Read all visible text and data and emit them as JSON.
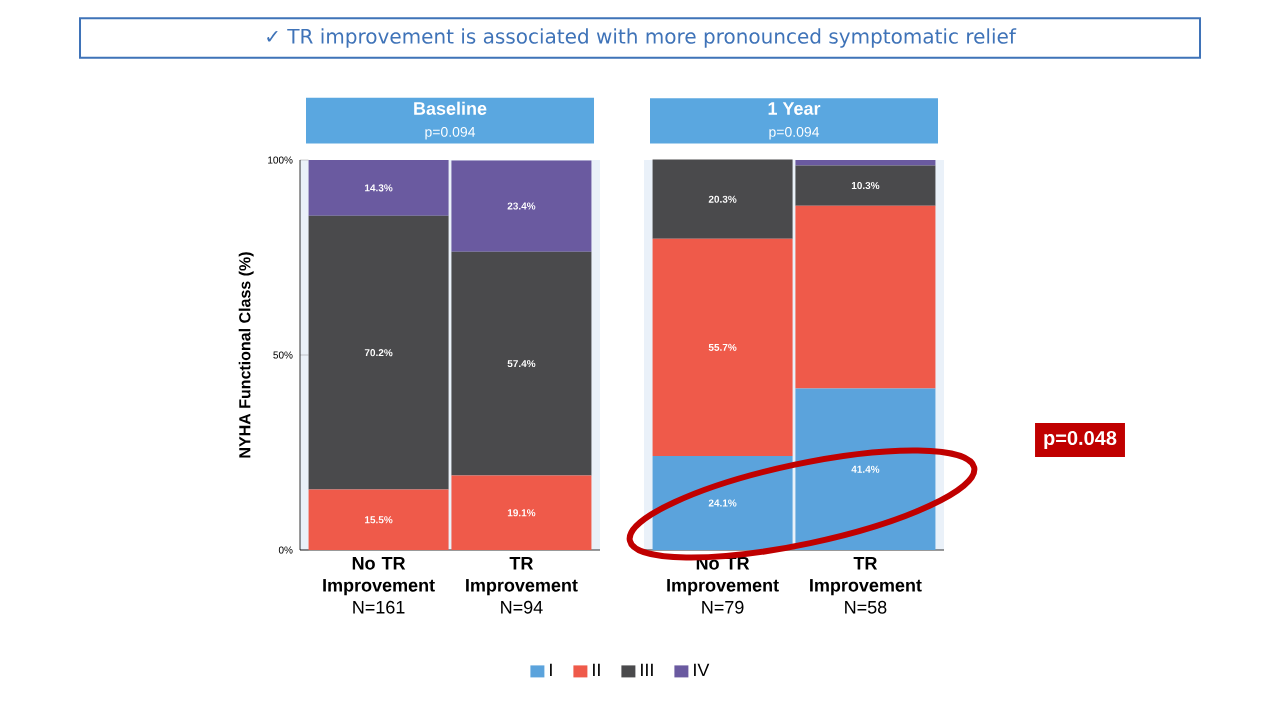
{
  "chart_data": [
    {
      "type": "bar",
      "stacked": true,
      "title": "Baseline",
      "subtitle": "p=0.094",
      "ylabel": "NYHA Functional Class (%)",
      "categories": [
        "**No TR Improvement** N=161",
        "**TR Improvement** N=94"
      ],
      "ylim": [
        0,
        100
      ],
      "yticks": [
        {
          "value": 0,
          "label": "0%"
        },
        {
          "value": 50,
          "label": "50%"
        },
        {
          "value": 100,
          "label": "100%"
        }
      ],
      "legend": "bottom",
      "annotations": [
        "✓ TR improvement is associated with more pronounced symptomatic relief"
      ],
      "series": [
        {
          "name": "I",
          "color": "#5ba3dc",
          "values": [
            0,
            0
          ],
          "value_labels": [
            null,
            null
          ]
        },
        {
          "name": "II",
          "color": "#ef5a4a",
          "values": [
            15.5,
            19.1
          ],
          "value_labels": [
            "15.5%",
            "19.1%"
          ]
        },
        {
          "name": "III",
          "color": "#4a4a4c",
          "values": [
            70.2,
            57.4
          ],
          "value_labels": [
            "70.2%",
            "57.4%"
          ]
        },
        {
          "name": "IV",
          "color": "#6a5aa0",
          "values": [
            14.3,
            23.4
          ],
          "value_labels": [
            "14.3%",
            "23.4%"
          ]
        }
      ]
    },
    {
      "type": "bar",
      "stacked": true,
      "title": "1 Year",
      "subtitle": "p=0.094",
      "categories": [
        "**No TR Improvement** N=79",
        "**TR Improvement** N=58"
      ],
      "ylim": [
        0,
        100
      ],
      "tick_labels": "x",
      "annotations": [
        "p=0.048"
      ],
      "series": [
        {
          "color": "#5ba3dc",
          "values": [
            24.1,
            41.4
          ],
          "value_labels": [
            "24.1%",
            "41.4%"
          ]
        },
        {
          "color": "#ef5a4a",
          "values": [
            55.7,
            46.9
          ],
          "value_labels": [
            "55.7%",
            null
          ]
        },
        {
          "color": "#4a4a4c",
          "values": [
            20.3,
            10.3
          ],
          "value_labels": [
            "20.3%",
            "10.3%"
          ]
        },
        {
          "color": "#6a5aa0",
          "values": [
            0,
            1.4
          ],
          "value_labels": [
            null,
            null
          ]
        }
      ]
    }
  ]
}
